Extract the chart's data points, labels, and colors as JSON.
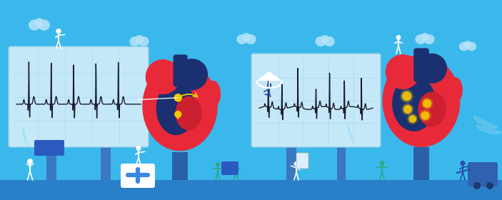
{
  "bg_color": "#3ab8ec",
  "panel_color": "#c5e8f8",
  "panel_border": "#90cce8",
  "grid_color": "#a8d8f0",
  "ecg_color": "#1a1a2e",
  "heart_red": "#e8293a",
  "heart_dark_red": "#c01828",
  "heart_blue_dark": "#1a3070",
  "heart_blue_mid": "#2a4898",
  "heart_red2": "#cc2030",
  "white": "#ffffff",
  "yellow": "#f5c800",
  "yellow_arrow": "#e8b000",
  "teal": "#2aaa88",
  "navy": "#1a3a8a",
  "blue_pillar": "#3a78c0",
  "blue_pillar2": "#2a60a8",
  "ground_color": "#2a80c8",
  "cloud_color": "#b8e4f8",
  "defi_blue": "#2a5ac0",
  "medbox_blue": "#3a88e0",
  "cart_blue": "#3060b0",
  "person_blue": "#2a4aaa"
}
